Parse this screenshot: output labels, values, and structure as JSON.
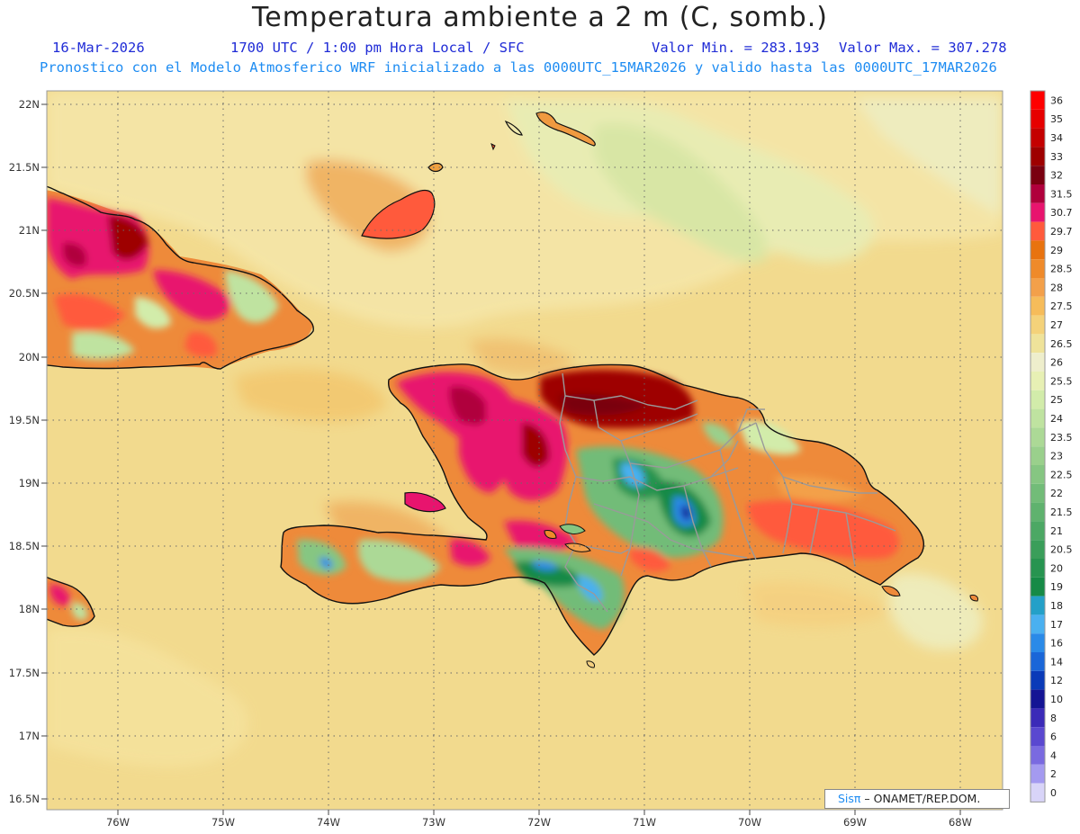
{
  "header": {
    "title": "Temperatura ambiente a 2 m (C, somb.)",
    "date": "16-Mar-2026",
    "time": "1700 UTC / 1:00 pm Hora Local / SFC",
    "min_value": "Valor Min. = 283.193",
    "max_value": "Valor Max. = 307.278",
    "model_line": "Pronostico con el Modelo Atmosferico WRF inicializado a las 0000UTC_15MAR2026 y valido hasta las  0000UTC_17MAR2026"
  },
  "axes": {
    "lat_labels": [
      "22N",
      "21.5N",
      "21N",
      "20.5N",
      "20N",
      "19.5N",
      "19N",
      "18.5N",
      "18N",
      "17.5N",
      "17N",
      "16.5N"
    ],
    "lon_labels": [
      "76W",
      "75W",
      "74W",
      "73W",
      "72W",
      "71W",
      "70W",
      "69W",
      "68W"
    ]
  },
  "colorbar": {
    "labels": [
      "36",
      "35",
      "34",
      "33",
      "32",
      "31.5",
      "30.7",
      "29.7",
      "29",
      "28.5",
      "28",
      "27.5",
      "27",
      "26.5",
      "26",
      "25.5",
      "25",
      "24",
      "23.5",
      "23",
      "22.5",
      "22",
      "21.5",
      "21",
      "20.5",
      "20",
      "19",
      "18",
      "17",
      "16",
      "14",
      "12",
      "10",
      "8",
      "6",
      "4",
      "2",
      "0"
    ],
    "colors": [
      "#ff0000",
      "#e60000",
      "#c40000",
      "#9e0000",
      "#7a0010",
      "#b0003c",
      "#e8146e",
      "#ff5a3c",
      "#e8730f",
      "#ef8a2a",
      "#f3a04a",
      "#f6bc5a",
      "#f4d27a",
      "#efe39a",
      "#eeeecc",
      "#e7f0b4",
      "#d2ecaa",
      "#bfe3a0",
      "#acd996",
      "#9ad08c",
      "#86c682",
      "#72bc78",
      "#5fb26e",
      "#4ca864",
      "#3a9e5a",
      "#279450",
      "#168a46",
      "#24a0c8",
      "#4ab0f0",
      "#2a8ae8",
      "#1a66d8",
      "#0a3ab8",
      "#141494",
      "#3b2ab8",
      "#5a48d0",
      "#7a6ae0",
      "#a49af0",
      "#d8d4f8"
    ]
  },
  "credit": {
    "sis": "Sisπ",
    "rest": " – ONAMET/REP.DOM."
  },
  "colors": {
    "sea": "#f3dc92",
    "sea_light": "#f4e6a6",
    "coast": "#111111",
    "border": "#9a9a9a"
  }
}
